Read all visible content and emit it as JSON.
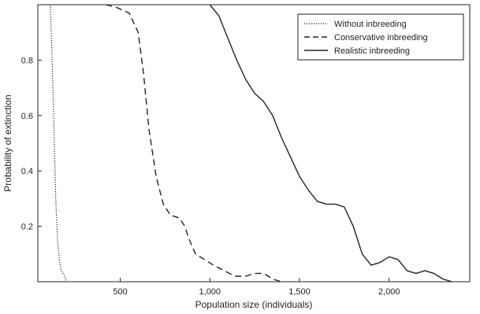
{
  "chart_data": {
    "type": "line",
    "xlabel": "Population size (individuals)",
    "ylabel": "Probability of extinction",
    "xlim": [
      40,
      2450
    ],
    "ylim": [
      0,
      1
    ],
    "xticks": [
      500,
      1000,
      1500,
      2000
    ],
    "xtick_labels": [
      "500",
      "1,000",
      "1,500",
      "2,000"
    ],
    "yticks": [
      0.2,
      0.4,
      0.6,
      0.8
    ],
    "ytick_labels": [
      "0.2",
      "0.4",
      "0.6",
      "0.8"
    ],
    "grid": false,
    "legend_position": "top-right",
    "series": [
      {
        "name": "Without inbreeding",
        "style": "dotted",
        "points": [
          [
            110,
            1.0
          ],
          [
            120,
            0.8
          ],
          [
            130,
            0.55
          ],
          [
            140,
            0.3
          ],
          [
            150,
            0.15
          ],
          [
            160,
            0.08
          ],
          [
            170,
            0.04
          ],
          [
            180,
            0.03
          ],
          [
            190,
            0.02
          ],
          [
            200,
            0.0
          ]
        ]
      },
      {
        "name": "Conservative inbreeding",
        "style": "dashed",
        "points": [
          [
            420,
            1.0
          ],
          [
            480,
            0.99
          ],
          [
            550,
            0.97
          ],
          [
            600,
            0.9
          ],
          [
            630,
            0.75
          ],
          [
            660,
            0.55
          ],
          [
            700,
            0.38
          ],
          [
            740,
            0.28
          ],
          [
            780,
            0.24
          ],
          [
            830,
            0.23
          ],
          [
            860,
            0.2
          ],
          [
            880,
            0.16
          ],
          [
            920,
            0.1
          ],
          [
            970,
            0.08
          ],
          [
            1020,
            0.06
          ],
          [
            1080,
            0.04
          ],
          [
            1140,
            0.02
          ],
          [
            1200,
            0.02
          ],
          [
            1250,
            0.03
          ],
          [
            1300,
            0.03
          ],
          [
            1350,
            0.01
          ],
          [
            1400,
            0.0
          ]
        ]
      },
      {
        "name": "Realistic inbreeding",
        "style": "solid",
        "points": [
          [
            1000,
            1.0
          ],
          [
            1050,
            0.96
          ],
          [
            1100,
            0.88
          ],
          [
            1150,
            0.8
          ],
          [
            1200,
            0.73
          ],
          [
            1250,
            0.68
          ],
          [
            1300,
            0.65
          ],
          [
            1350,
            0.6
          ],
          [
            1400,
            0.52
          ],
          [
            1450,
            0.45
          ],
          [
            1500,
            0.38
          ],
          [
            1550,
            0.33
          ],
          [
            1600,
            0.29
          ],
          [
            1650,
            0.28
          ],
          [
            1700,
            0.28
          ],
          [
            1750,
            0.27
          ],
          [
            1800,
            0.2
          ],
          [
            1850,
            0.1
          ],
          [
            1900,
            0.06
          ],
          [
            1950,
            0.07
          ],
          [
            2000,
            0.09
          ],
          [
            2050,
            0.08
          ],
          [
            2100,
            0.04
          ],
          [
            2150,
            0.03
          ],
          [
            2200,
            0.04
          ],
          [
            2250,
            0.03
          ],
          [
            2300,
            0.01
          ],
          [
            2350,
            0.0
          ]
        ]
      }
    ]
  }
}
